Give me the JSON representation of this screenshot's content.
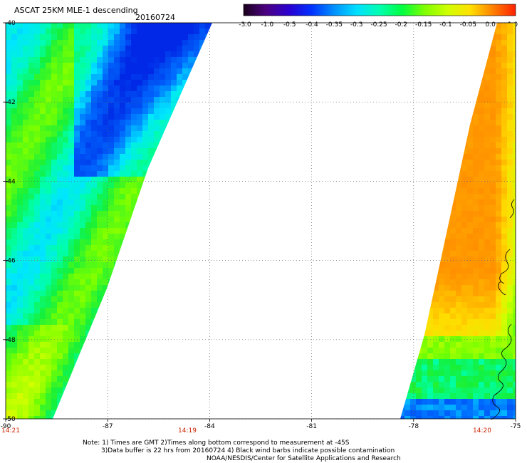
{
  "header": {
    "title": "ASCAT 25KM MLE-1 descending",
    "date": "20160724"
  },
  "colorbar": {
    "labels": [
      "-3.0",
      "-1.0",
      "-0.5",
      "-0.4",
      "-0.35",
      "-0.3",
      "-0.25",
      "-0.2",
      "-0.15",
      "-0.1",
      "-0.05",
      "0.0",
      "1.0"
    ],
    "colors": [
      "#1a001a",
      "#4b0082",
      "#2a00d0",
      "#0030ff",
      "#0090ff",
      "#00e0ff",
      "#00ffb0",
      "#00ff40",
      "#80ff00",
      "#d0ff00",
      "#ffe000",
      "#ff8000",
      "#ff2000"
    ]
  },
  "chart_data": {
    "type": "heatmap",
    "title": "ASCAT 25KM MLE-1 descending",
    "subtitle": "20160724",
    "x_ticks": [
      "-90",
      "-87",
      "-84",
      "-81",
      "-78",
      "-75"
    ],
    "y_ticks": [
      "-40",
      "-42",
      "-44",
      "-46",
      "-48",
      "-50"
    ],
    "xlim": [
      -90,
      -75
    ],
    "ylim": [
      -50,
      -40
    ],
    "grid": true,
    "swaths": [
      {
        "name": "",
        "region": "west",
        "dominant_values": [
          "-0.2",
          "-0.25",
          "-0.3",
          "-0.35"
        ]
      },
      {
        "name": "",
        "region": "east",
        "dominant_values": [
          "0.0",
          "-0.05",
          "-0.1",
          "-0.15",
          "-0.2",
          "-0.3"
        ]
      }
    ]
  },
  "bottom_times": {
    "left": "14:21",
    "mid": "14:19",
    "right": "14:20"
  },
  "notes": {
    "line1": "Note: 1) Times are GMT 2)Times along bottom correspond to measurement at -45S",
    "line2": "3)Data buffer is 22 hrs from 20160724 4) Black wind barbs indicate possible contamination",
    "line3": "NOAA/NESDIS/Center for Satellite Applications and Research"
  }
}
